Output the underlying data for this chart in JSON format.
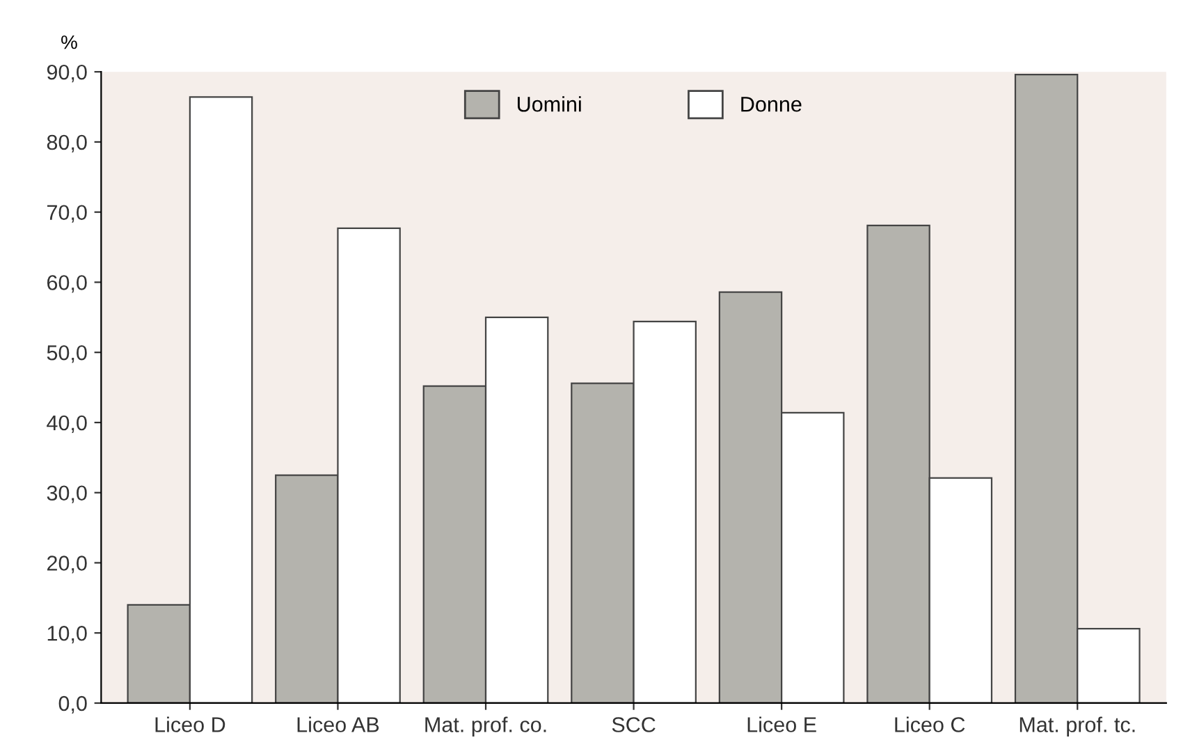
{
  "chart_data": {
    "type": "bar",
    "ylabel": "%",
    "categories": [
      "Liceo D",
      "Liceo AB",
      "Mat. prof. co.",
      "SCC",
      "Liceo E",
      "Liceo C",
      "Mat. prof. tc."
    ],
    "series": [
      {
        "name": "Uomini",
        "color": "#b4b3ad",
        "values": [
          14.0,
          32.5,
          45.2,
          45.6,
          58.6,
          68.1,
          89.6
        ]
      },
      {
        "name": "Donne",
        "color": "#ffffff",
        "values": [
          86.4,
          67.7,
          55.0,
          54.4,
          41.4,
          32.1,
          10.6
        ]
      }
    ],
    "ylim": [
      0,
      90
    ],
    "yticks": [
      {
        "value": 0,
        "label": "0,0"
      },
      {
        "value": 10,
        "label": "10,0"
      },
      {
        "value": 20,
        "label": "20,0"
      },
      {
        "value": 30,
        "label": "30,0"
      },
      {
        "value": 40,
        "label": "40,0"
      },
      {
        "value": 50,
        "label": "50,0"
      },
      {
        "value": 60,
        "label": "60,0"
      },
      {
        "value": 70,
        "label": "70,0"
      },
      {
        "value": 80,
        "label": "80,0"
      },
      {
        "value": 90,
        "label": "90,0"
      }
    ],
    "legend": "top",
    "grid": false
  }
}
